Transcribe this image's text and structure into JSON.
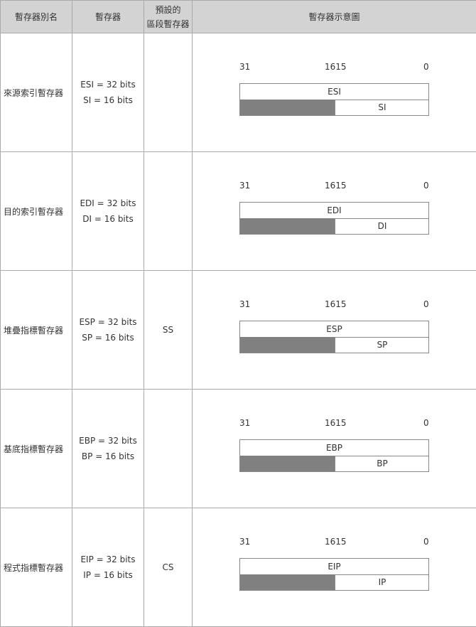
{
  "headers": {
    "alias": "暫存器別名",
    "register": "暫存器",
    "default_seg_line1": "預設的",
    "default_seg_line2": "區段暫存器",
    "diagram": "暫存器示意圖"
  },
  "bit_labels": {
    "b31": "31",
    "b1615": "1615",
    "b0": "0"
  },
  "rows": [
    {
      "alias": "來源索引暫存器",
      "reg32": "ESI = 32 bits",
      "reg16": "SI = 16 bits",
      "segment": "",
      "box32": "ESI",
      "box16": "SI"
    },
    {
      "alias": "目的索引暫存器",
      "reg32": "EDI = 32 bits",
      "reg16": "DI = 16 bits",
      "segment": "",
      "box32": "EDI",
      "box16": "DI"
    },
    {
      "alias": "堆疊指標暫存器",
      "reg32": "ESP = 32 bits",
      "reg16": "SP = 16 bits",
      "segment": "SS",
      "box32": "ESP",
      "box16": "SP"
    },
    {
      "alias": "基底指標暫存器",
      "reg32": "EBP = 32 bits",
      "reg16": "BP = 16 bits",
      "segment": "",
      "box32": "EBP",
      "box16": "BP"
    },
    {
      "alias": "程式指標暫存器",
      "reg32": "EIP = 32 bits",
      "reg16": "IP = 16 bits",
      "segment": "CS",
      "box32": "EIP",
      "box16": "IP"
    }
  ]
}
